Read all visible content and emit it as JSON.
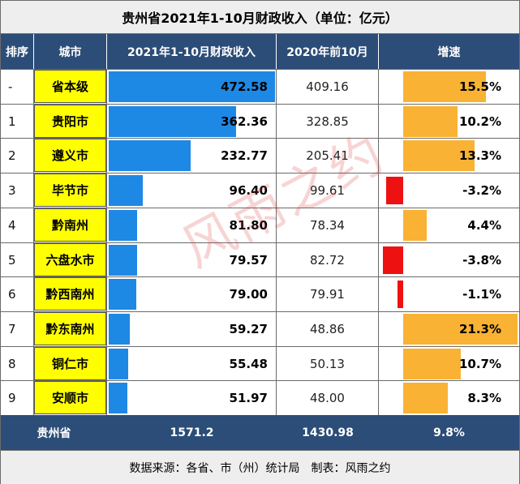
{
  "title": "贵州省2021年1-10月财政收入（单位：亿元）",
  "headers": {
    "rank": "排序",
    "city": "城市",
    "income_2021": "2021年1-10月财政收入",
    "income_2020": "2020年前10月",
    "growth": "增速"
  },
  "rows": [
    {
      "rank": "-",
      "city": "省本级",
      "income_2021": "472.58",
      "income_2020": "409.16",
      "growth": "15.5%"
    },
    {
      "rank": "1",
      "city": "贵阳市",
      "income_2021": "362.36",
      "income_2020": "328.85",
      "growth": "10.2%"
    },
    {
      "rank": "2",
      "city": "遵义市",
      "income_2021": "232.77",
      "income_2020": "205.41",
      "growth": "13.3%"
    },
    {
      "rank": "3",
      "city": "毕节市",
      "income_2021": "96.40",
      "income_2020": "99.61",
      "growth": "-3.2%"
    },
    {
      "rank": "4",
      "city": "黔南州",
      "income_2021": "81.80",
      "income_2020": "78.34",
      "growth": "4.4%"
    },
    {
      "rank": "5",
      "city": "六盘水市",
      "income_2021": "79.57",
      "income_2020": "82.72",
      "growth": "-3.8%"
    },
    {
      "rank": "6",
      "city": "黔西南州",
      "income_2021": "79.00",
      "income_2020": "79.91",
      "growth": "-1.1%"
    },
    {
      "rank": "7",
      "city": "黔东南州",
      "income_2021": "59.27",
      "income_2020": "48.86",
      "growth": "21.3%"
    },
    {
      "rank": "8",
      "city": "铜仁市",
      "income_2021": "55.48",
      "income_2020": "50.13",
      "growth": "10.7%"
    },
    {
      "rank": "9",
      "city": "安顺市",
      "income_2021": "51.97",
      "income_2020": "48.00",
      "growth": "8.3%"
    }
  ],
  "total": {
    "label": "贵州省",
    "income_2021": "1571.2",
    "income_2020": "1430.98",
    "growth": "9.8%"
  },
  "footer": "数据来源：各省、市（州）统计局　制表：风雨之约",
  "watermark": "风雨之约",
  "colors": {
    "header_bg": "#2b4d78",
    "city_highlight": "#ffff00",
    "income_bar": "#1e88e5",
    "growth_positive": "#f9b233",
    "growth_negative": "#ee1111"
  },
  "chart_data": {
    "type": "table",
    "categories": [
      "省本级",
      "贵阳市",
      "遵义市",
      "毕节市",
      "黔南州",
      "六盘水市",
      "黔西南州",
      "黔东南州",
      "铜仁市",
      "安顺市"
    ],
    "series": [
      {
        "name": "2021年1-10月财政收入",
        "values": [
          472.58,
          362.36,
          232.77,
          96.4,
          81.8,
          79.57,
          79.0,
          59.27,
          55.48,
          51.97
        ]
      },
      {
        "name": "2020年前10月",
        "values": [
          409.16,
          328.85,
          205.41,
          99.61,
          78.34,
          82.72,
          79.91,
          48.86,
          50.13,
          48.0
        ]
      },
      {
        "name": "增速",
        "values": [
          15.5,
          10.2,
          13.3,
          -3.2,
          4.4,
          -3.8,
          -1.1,
          21.3,
          10.7,
          8.3
        ]
      }
    ],
    "title": "贵州省2021年1-10月财政收入（单位：亿元）"
  }
}
